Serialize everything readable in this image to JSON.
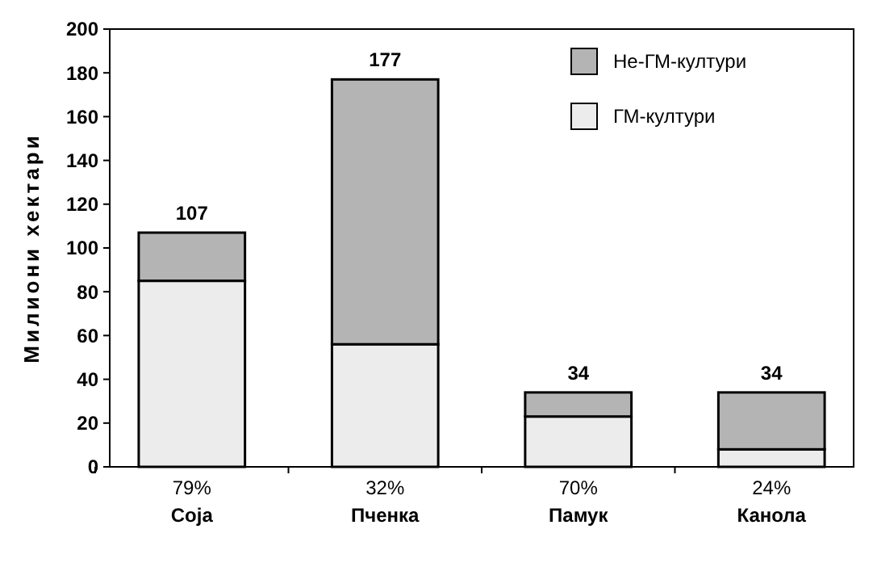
{
  "chart_data": {
    "type": "bar",
    "stacked": true,
    "ylabel": "Милиони хектари",
    "categories": [
      "Соја",
      "Пченка",
      "Памук",
      "Канола"
    ],
    "series": [
      {
        "name": "ГМ-култури",
        "color": "#ececec",
        "values": [
          85,
          56,
          23,
          8
        ]
      },
      {
        "name": "Не-ГМ-култури",
        "color": "#b4b4b4",
        "values": [
          22,
          121,
          11,
          26
        ]
      }
    ],
    "totals": [
      "107",
      "177",
      "34",
      "34"
    ],
    "annotations": [
      "79%",
      "32%",
      "70%",
      "24%"
    ],
    "ylim": [
      0,
      200
    ],
    "yticks": [
      0,
      20,
      40,
      60,
      80,
      100,
      120,
      140,
      160,
      180,
      200
    ],
    "legend": "top right",
    "grid": false
  }
}
